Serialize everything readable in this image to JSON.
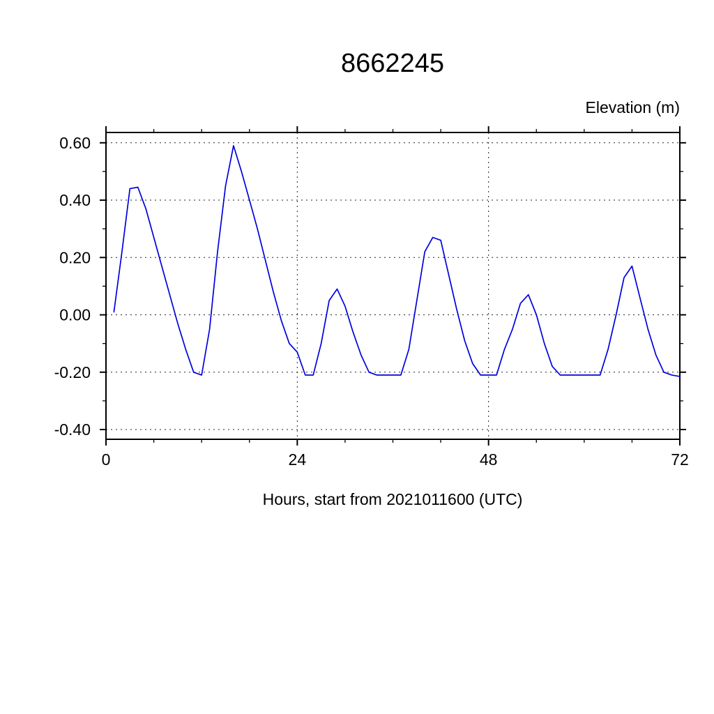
{
  "page": {
    "background": "#ffffff"
  },
  "chart_data": {
    "type": "line",
    "title": "8662245",
    "ylabel": "Elevation (m)",
    "ylabel_position": "top-right",
    "xlabel": "Hours, start from 2021011600 (UTC)",
    "xlim": [
      0,
      72
    ],
    "ylim": [
      -0.4,
      0.6
    ],
    "xticks": [
      0,
      24,
      48,
      72
    ],
    "xtick_labels": [
      "0",
      "24",
      "48",
      "72"
    ],
    "x_minor_tick_step": 6,
    "yticks": [
      0.6,
      0.4,
      0.2,
      0.0,
      -0.2,
      -0.4
    ],
    "ytick_labels": [
      "0.60",
      "0.40",
      "0.20",
      "0.00",
      "-0.20",
      "-0.40"
    ],
    "y_minor_tick_step": 0.1,
    "grid": "dashed",
    "grid_x_lines": [
      24,
      48
    ],
    "legend": "none",
    "series": [
      {
        "name": "elevation",
        "color": "#0000dd",
        "x": [
          1,
          2,
          3,
          4,
          5,
          6,
          7,
          8,
          9,
          10,
          11,
          12,
          13,
          14,
          15,
          16,
          17,
          18,
          19,
          20,
          21,
          22,
          23,
          24,
          25,
          26,
          27,
          28,
          29,
          30,
          31,
          32,
          33,
          34,
          35,
          36,
          37,
          38,
          39,
          40,
          41,
          42,
          43,
          44,
          45,
          46,
          47,
          48,
          49,
          50,
          51,
          52,
          53,
          54,
          55,
          56,
          57,
          58,
          59,
          60,
          61,
          62,
          63,
          64,
          65,
          66,
          67,
          68,
          69,
          70,
          71,
          72
        ],
        "y": [
          0.01,
          0.22,
          0.44,
          0.445,
          0.37,
          0.27,
          0.17,
          0.07,
          -0.03,
          -0.12,
          -0.2,
          -0.21,
          -0.05,
          0.22,
          0.45,
          0.59,
          0.5,
          0.4,
          0.3,
          0.19,
          0.08,
          -0.02,
          -0.1,
          -0.13,
          -0.21,
          -0.21,
          -0.1,
          0.05,
          0.09,
          0.03,
          -0.06,
          -0.14,
          -0.2,
          -0.21,
          -0.21,
          -0.21,
          -0.21,
          -0.12,
          0.05,
          0.22,
          0.27,
          0.26,
          0.14,
          0.02,
          -0.09,
          -0.17,
          -0.21,
          -0.21,
          -0.21,
          -0.12,
          -0.05,
          0.04,
          0.07,
          0.0,
          -0.1,
          -0.18,
          -0.21,
          -0.21,
          -0.21,
          -0.21,
          -0.21,
          -0.21,
          -0.12,
          0.0,
          0.13,
          0.17,
          0.06,
          -0.05,
          -0.14,
          -0.2,
          -0.21,
          -0.215
        ]
      }
    ]
  }
}
